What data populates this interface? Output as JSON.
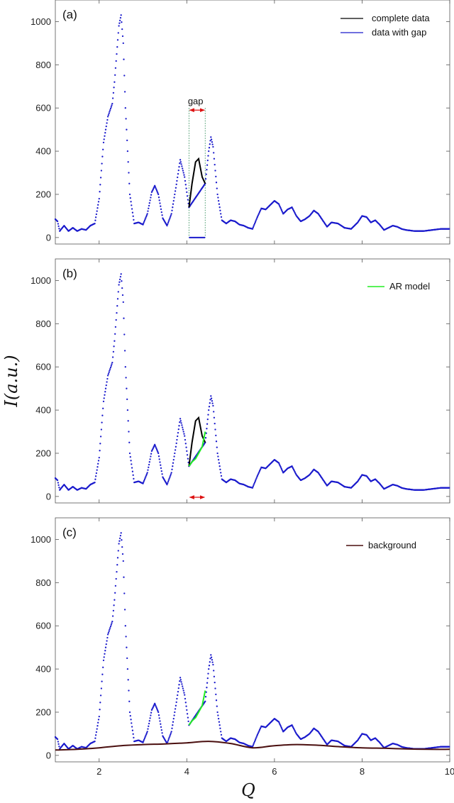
{
  "figure": {
    "xlabel": "Q",
    "ylabel": "I(a.u.)"
  },
  "colors": {
    "complete": "#000000",
    "gap_data": "#1a1acc",
    "ar_model": "#22ee22",
    "background": "#4a0f0f",
    "gap_arrow": "#dd1111",
    "gap_bounds": "#2e8b57"
  },
  "chart_data": [
    {
      "panel": "(a)",
      "type": "line",
      "xlim": [
        1,
        10
      ],
      "ylim": [
        -30,
        1100
      ],
      "xticks": [
        2,
        4,
        6,
        8,
        10
      ],
      "yticks": [
        0,
        200,
        400,
        600,
        800,
        1000
      ],
      "legend": {
        "placement": "top-right",
        "entries": [
          "complete data",
          "data with gap"
        ]
      },
      "series": [
        {
          "name": "complete data",
          "x": [
            4.05,
            4.12,
            4.2,
            4.27,
            4.35,
            4.42
          ],
          "y": [
            140,
            250,
            350,
            365,
            280,
            250
          ]
        },
        {
          "name": "data with gap",
          "x": [
            1.0,
            1.05,
            1.1,
            1.2,
            1.3,
            1.4,
            1.5,
            1.6,
            1.7,
            1.8,
            1.9,
            2.0,
            2.1,
            2.2,
            2.3,
            2.35,
            2.4,
            2.45,
            2.5,
            2.55,
            2.6,
            2.7,
            2.8,
            2.9,
            3.0,
            3.1,
            3.2,
            3.27,
            3.35,
            3.45,
            3.55,
            3.65,
            3.75,
            3.85,
            3.95,
            4.05,
            4.42,
            4.5,
            4.55,
            4.6,
            4.7,
            4.8,
            4.9,
            5.0,
            5.1,
            5.2,
            5.3,
            5.4,
            5.5,
            5.6,
            5.7,
            5.8,
            5.9,
            6.0,
            6.1,
            6.2,
            6.3,
            6.4,
            6.5,
            6.6,
            6.7,
            6.8,
            6.9,
            7.0,
            7.1,
            7.2,
            7.3,
            7.45,
            7.6,
            7.75,
            7.9,
            8.0,
            8.1,
            8.2,
            8.3,
            8.4,
            8.5,
            8.6,
            8.7,
            8.8,
            8.9,
            9.0,
            9.2,
            9.4,
            9.6,
            9.8,
            10.0
          ],
          "y": [
            85,
            75,
            30,
            55,
            30,
            45,
            30,
            40,
            35,
            55,
            65,
            180,
            440,
            560,
            620,
            720,
            850,
            980,
            1030,
            900,
            600,
            200,
            65,
            70,
            60,
            110,
            210,
            240,
            200,
            90,
            55,
            110,
            230,
            360,
            280,
            140,
            250,
            400,
            465,
            420,
            200,
            80,
            65,
            80,
            75,
            60,
            55,
            45,
            40,
            90,
            135,
            130,
            150,
            170,
            155,
            110,
            130,
            140,
            100,
            75,
            85,
            100,
            125,
            110,
            80,
            50,
            70,
            65,
            45,
            40,
            70,
            100,
            95,
            70,
            80,
            60,
            35,
            45,
            55,
            50,
            40,
            35,
            30,
            30,
            35,
            40,
            40
          ]
        },
        {
          "name": "gap marker",
          "x": [
            4.05,
            4.42
          ],
          "y": [
            0,
            0
          ]
        }
      ],
      "annotations": [
        {
          "text": "gap",
          "x": 4.2,
          "y": 610
        }
      ]
    },
    {
      "panel": "(b)",
      "type": "line",
      "xlim": [
        1,
        10
      ],
      "ylim": [
        -30,
        1100
      ],
      "xticks": [
        2,
        4,
        6,
        8,
        10
      ],
      "yticks": [
        0,
        200,
        400,
        600,
        800,
        1000
      ],
      "legend": {
        "placement": "top-right",
        "entries": [
          "AR model"
        ]
      },
      "series": [
        {
          "name": "AR model",
          "x": [
            4.05,
            4.12,
            4.2,
            4.27,
            4.35,
            4.42
          ],
          "y": [
            140,
            160,
            175,
            200,
            230,
            300
          ]
        }
      ]
    },
    {
      "panel": "(c)",
      "type": "line",
      "xlim": [
        1,
        10
      ],
      "ylim": [
        -30,
        1100
      ],
      "xticks": [
        2,
        4,
        6,
        8,
        10
      ],
      "yticks": [
        0,
        200,
        400,
        600,
        800,
        1000
      ],
      "legend": {
        "placement": "top-right",
        "entries": [
          "background"
        ]
      },
      "series": [
        {
          "name": "background",
          "x": [
            1.0,
            1.5,
            2.0,
            2.5,
            3.0,
            3.5,
            4.0,
            4.5,
            5.0,
            5.5,
            6.0,
            6.5,
            7.0,
            7.5,
            8.0,
            8.5,
            9.0,
            9.5,
            10.0
          ],
          "y": [
            25,
            28,
            35,
            45,
            50,
            53,
            58,
            65,
            55,
            35,
            45,
            50,
            47,
            40,
            35,
            33,
            30,
            28,
            28
          ]
        }
      ]
    }
  ]
}
